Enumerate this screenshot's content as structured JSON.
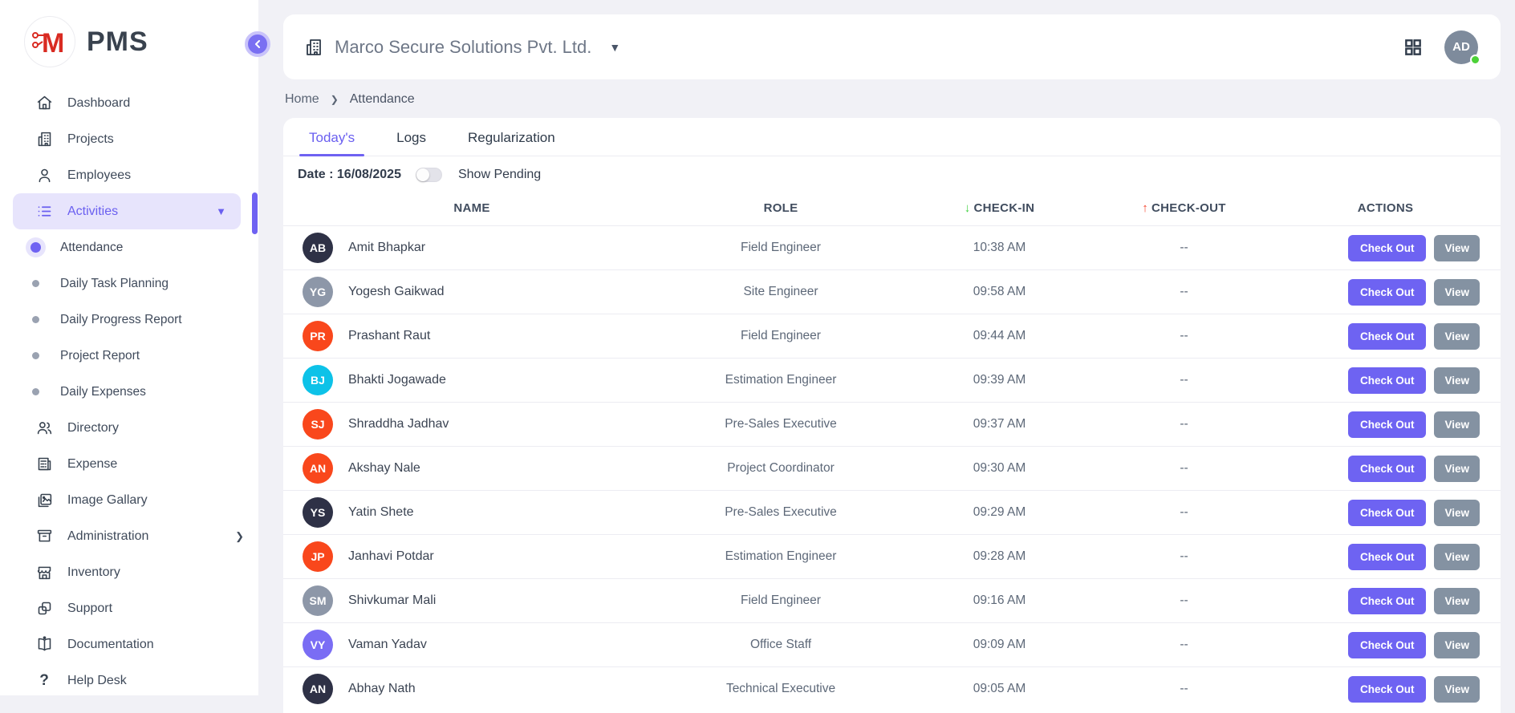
{
  "brand": {
    "name": "PMS",
    "monogram": "M",
    "monogram_color": "#d92b22"
  },
  "sidebar": {
    "items": [
      {
        "label": "Dashboard"
      },
      {
        "label": "Projects"
      },
      {
        "label": "Employees"
      },
      {
        "label": "Activities"
      },
      {
        "label": "Directory"
      },
      {
        "label": "Expense"
      },
      {
        "label": "Image Gallary"
      },
      {
        "label": "Administration"
      },
      {
        "label": "Inventory"
      },
      {
        "label": "Support"
      },
      {
        "label": "Documentation"
      },
      {
        "label": "Help Desk"
      }
    ],
    "submenu": [
      {
        "label": "Attendance",
        "active": true
      },
      {
        "label": "Daily Task Planning",
        "active": false
      },
      {
        "label": "Daily Progress Report",
        "active": false
      },
      {
        "label": "Project Report",
        "active": false
      },
      {
        "label": "Daily Expenses",
        "active": false
      }
    ]
  },
  "topbar": {
    "company": "Marco Secure Solutions Pvt. Ltd.",
    "avatar_initials": "AD"
  },
  "breadcrumb": {
    "home": "Home",
    "current": "Attendance"
  },
  "tabs": {
    "today": "Today's",
    "logs": "Logs",
    "regularization": "Regularization",
    "active": "Today's"
  },
  "filters": {
    "date_label": "Date : 16/08/2025",
    "toggle_label": "Show Pending",
    "toggle_on": false
  },
  "table": {
    "columns": {
      "name": "NAME",
      "role": "ROLE",
      "checkin": "CHECK-IN",
      "checkout": "CHECK-OUT",
      "actions": "ACTIONS"
    },
    "checkout_button": "Check Out",
    "view_button": "View",
    "rows": [
      {
        "initials": "AB",
        "avatar_color": "#2e3146",
        "name": "Amit Bhapkar",
        "role": "Field Engineer",
        "checkin": "10:38 AM",
        "checkout": "--"
      },
      {
        "initials": "YG",
        "avatar_color": "#8d97a8",
        "name": "Yogesh Gaikwad",
        "role": "Site Engineer",
        "checkin": "09:58 AM",
        "checkout": "--"
      },
      {
        "initials": "PR",
        "avatar_color": "#f9471c",
        "name": "Prashant Raut",
        "role": "Field Engineer",
        "checkin": "09:44 AM",
        "checkout": "--"
      },
      {
        "initials": "BJ",
        "avatar_color": "#0dc2e8",
        "name": "Bhakti Jogawade",
        "role": "Estimation Engineer",
        "checkin": "09:39 AM",
        "checkout": "--"
      },
      {
        "initials": "SJ",
        "avatar_color": "#f9471c",
        "name": "Shraddha Jadhav",
        "role": "Pre-Sales Executive",
        "checkin": "09:37 AM",
        "checkout": "--"
      },
      {
        "initials": "AN",
        "avatar_color": "#f9471c",
        "name": "Akshay Nale",
        "role": "Project Coordinator",
        "checkin": "09:30 AM",
        "checkout": "--"
      },
      {
        "initials": "YS",
        "avatar_color": "#2e3146",
        "name": "Yatin Shete",
        "role": "Pre-Sales Executive",
        "checkin": "09:29 AM",
        "checkout": "--"
      },
      {
        "initials": "JP",
        "avatar_color": "#f9471c",
        "name": "Janhavi Potdar",
        "role": "Estimation Engineer",
        "checkin": "09:28 AM",
        "checkout": "--"
      },
      {
        "initials": "SM",
        "avatar_color": "#8d97a8",
        "name": "Shivkumar Mali",
        "role": "Field Engineer",
        "checkin": "09:16 AM",
        "checkout": "--"
      },
      {
        "initials": "VY",
        "avatar_color": "#7a6df4",
        "name": "Vaman Yadav",
        "role": "Office Staff",
        "checkin": "09:09 AM",
        "checkout": "--"
      },
      {
        "initials": "AN",
        "avatar_color": "#2e3146",
        "name": "Abhay Nath",
        "role": "Technical Executive",
        "checkin": "09:05 AM",
        "checkout": "--"
      }
    ]
  },
  "colors": {
    "accent": "#6f62f2",
    "active_item_bg": "#e7e4fc",
    "checkin_arrow": "#3fd13f",
    "checkout_arrow": "#f5432c",
    "online_dot": "#4cd137",
    "page_bg": "#f1f1f6"
  }
}
